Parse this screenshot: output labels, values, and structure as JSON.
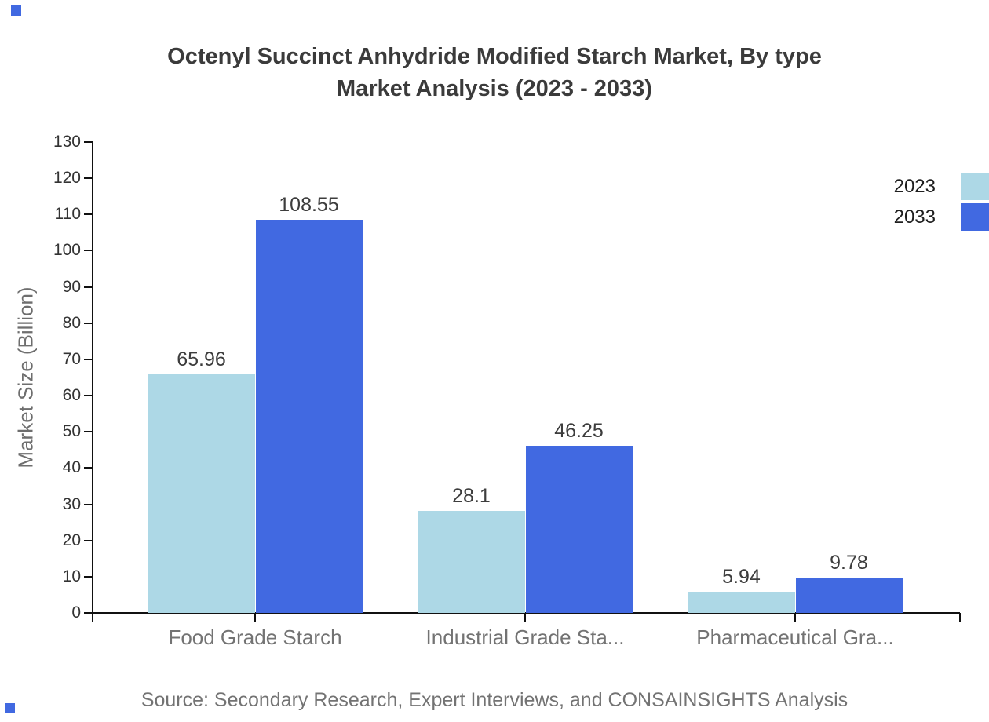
{
  "title": {
    "line1": "Octenyl Succinct Anhydride Modified Starch Market, By type",
    "line2": "Market Analysis (2023 - 2033)"
  },
  "source_text": "Source: Secondary Research, Expert Interviews, and CONSAINSIGHTS Analysis",
  "colors": {
    "series_2023": "#ADD8E6",
    "series_2033": "#4169E1",
    "axis": "#111111",
    "title_text": "#3b3b3b",
    "muted_text": "#737373",
    "tick_text": "#333333",
    "value_text": "#3d3d3d"
  },
  "legend": [
    {
      "label": "2023",
      "color": "#ADD8E6"
    },
    {
      "label": "2033",
      "color": "#4169E1"
    }
  ],
  "chart_data": {
    "type": "bar",
    "title": "Octenyl Succinct Anhydride Modified Starch Market, By type Market Analysis (2023 - 2033)",
    "categories": [
      "Food Grade Starch",
      "Industrial Grade Sta...",
      "Pharmaceutical Gra..."
    ],
    "series": [
      {
        "name": "2023",
        "color": "#ADD8E6",
        "values": [
          65.96,
          28.1,
          5.94
        ]
      },
      {
        "name": "2033",
        "color": "#4169E1",
        "values": [
          108.55,
          46.25,
          9.78
        ]
      }
    ],
    "value_labels": [
      [
        "65.96",
        "28.1",
        "5.94"
      ],
      [
        "108.55",
        "46.25",
        "9.78"
      ]
    ],
    "xlabel": "",
    "ylabel": "Market Size (Billion)",
    "ylim": [
      0,
      130
    ],
    "ytick_step": 10,
    "ytick_labels": [
      "0",
      "10",
      "20",
      "30",
      "40",
      "50",
      "60",
      "70",
      "80",
      "90",
      "100",
      "110",
      "120",
      "130"
    ],
    "grid": false,
    "legend_position": "top-right",
    "bar_orientation": "vertical"
  }
}
